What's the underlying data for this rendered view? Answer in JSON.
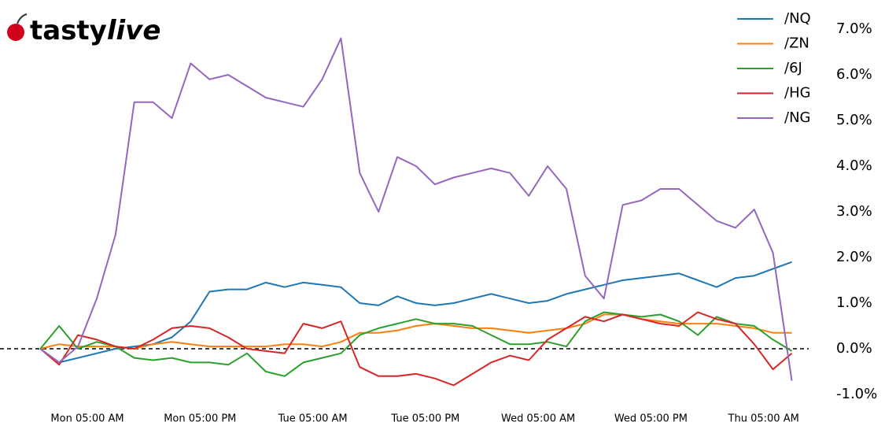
{
  "logo": [
    "tasty",
    "live"
  ],
  "chart_data": {
    "type": "line",
    "x": [
      0,
      2,
      4,
      6,
      8,
      10,
      12,
      14,
      16,
      18,
      20,
      22,
      24,
      26,
      28,
      30,
      32,
      34,
      36,
      38,
      40,
      42,
      44,
      46,
      48,
      50,
      52,
      54,
      56,
      58,
      60,
      62,
      64,
      66,
      68,
      70,
      72,
      74,
      76,
      78,
      80
    ],
    "xlim": [
      -4.3,
      81.8
    ],
    "xticks": [
      {
        "value": 5,
        "label": "Mon 05:00 AM"
      },
      {
        "value": 17,
        "label": "Mon 05:00 PM"
      },
      {
        "value": 29,
        "label": "Tue 05:00 AM"
      },
      {
        "value": 41,
        "label": "Tue 05:00 PM"
      },
      {
        "value": 53,
        "label": "Wed 05:00 AM"
      },
      {
        "value": 65,
        "label": "Wed 05:00 PM"
      },
      {
        "value": 77,
        "label": "Thu 05:00 AM"
      }
    ],
    "ylim": [
      -1.1,
      7.4
    ],
    "yticks": [
      {
        "value": -1,
        "label": "-1.0%"
      },
      {
        "value": 0,
        "label": "0.0%"
      },
      {
        "value": 1,
        "label": "1.0%"
      },
      {
        "value": 2,
        "label": "2.0%"
      },
      {
        "value": 3,
        "label": "3.0%"
      },
      {
        "value": 4,
        "label": "4.0%"
      },
      {
        "value": 5,
        "label": "5.0%"
      },
      {
        "value": 6,
        "label": "6.0%"
      },
      {
        "value": 7,
        "label": "7.0%"
      }
    ],
    "zero_line": true,
    "legend": "upper right",
    "series": [
      {
        "name": "/NQ",
        "color": "#1f77b4",
        "values": [
          0,
          -0.3,
          -0.2,
          -0.1,
          0,
          0.05,
          0.1,
          0.25,
          0.6,
          1.25,
          1.3,
          1.3,
          1.45,
          1.35,
          1.45,
          1.4,
          1.35,
          1.0,
          0.95,
          1.15,
          1.0,
          0.95,
          1.0,
          1.1,
          1.2,
          1.1,
          1.0,
          1.05,
          1.2,
          1.3,
          1.4,
          1.5,
          1.55,
          1.6,
          1.65,
          1.5,
          1.35,
          1.55,
          1.6,
          1.75,
          1.9
        ]
      },
      {
        "name": "/ZN",
        "color": "#ff7f0e",
        "values": [
          0,
          0.1,
          0.05,
          0.05,
          0.05,
          0.0,
          0.1,
          0.15,
          0.1,
          0.05,
          0.05,
          0.05,
          0.05,
          0.1,
          0.1,
          0.05,
          0.15,
          0.35,
          0.35,
          0.4,
          0.5,
          0.55,
          0.5,
          0.45,
          0.45,
          0.4,
          0.35,
          0.4,
          0.45,
          0.55,
          0.75,
          0.75,
          0.65,
          0.6,
          0.55,
          0.55,
          0.55,
          0.5,
          0.45,
          0.35,
          0.35
        ]
      },
      {
        "name": "/6J",
        "color": "#2ca02c",
        "values": [
          0,
          0.5,
          0.0,
          0.15,
          0.05,
          -0.2,
          -0.25,
          -0.2,
          -0.3,
          -0.3,
          -0.35,
          -0.1,
          -0.5,
          -0.6,
          -0.3,
          -0.2,
          -0.1,
          0.3,
          0.45,
          0.55,
          0.65,
          0.55,
          0.55,
          0.5,
          0.3,
          0.1,
          0.1,
          0.15,
          0.05,
          0.6,
          0.8,
          0.75,
          0.7,
          0.75,
          0.6,
          0.3,
          0.7,
          0.55,
          0.5,
          0.2,
          -0.05
        ]
      },
      {
        "name": "/HG",
        "color": "#d62728",
        "values": [
          0,
          -0.35,
          0.3,
          0.2,
          0.05,
          0.0,
          0.2,
          0.45,
          0.5,
          0.45,
          0.25,
          0.0,
          -0.05,
          -0.1,
          0.55,
          0.45,
          0.6,
          -0.4,
          -0.6,
          -0.6,
          -0.55,
          -0.65,
          -0.8,
          -0.55,
          -0.3,
          -0.15,
          -0.25,
          0.2,
          0.45,
          0.7,
          0.6,
          0.75,
          0.65,
          0.55,
          0.5,
          0.8,
          0.65,
          0.55,
          0.1,
          -0.45,
          -0.1
        ]
      },
      {
        "name": "/NG",
        "color": "#9467bd",
        "values": [
          0,
          -0.3,
          0.05,
          1.1,
          2.5,
          5.4,
          5.4,
          5.05,
          6.25,
          5.9,
          6.0,
          5.75,
          5.5,
          5.4,
          5.3,
          5.9,
          6.8,
          3.85,
          3.0,
          4.2,
          4.0,
          3.6,
          3.75,
          3.85,
          3.95,
          3.85,
          3.35,
          4.0,
          3.5,
          1.6,
          1.1,
          3.15,
          3.25,
          3.5,
          3.5,
          3.15,
          2.8,
          2.65,
          3.05,
          2.1,
          -0.7
        ]
      }
    ]
  }
}
